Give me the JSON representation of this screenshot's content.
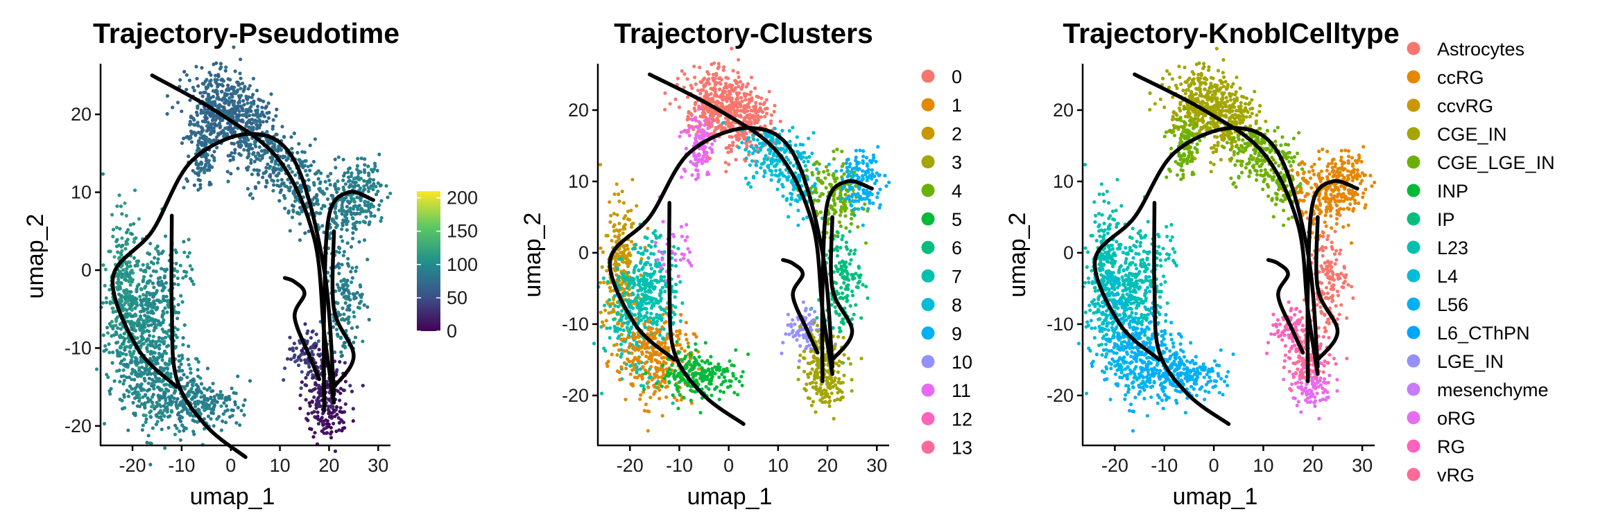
{
  "chart_data": [
    {
      "type": "scatter",
      "title": "Trajectory-Pseudotime",
      "xlabel": "umap_1",
      "ylabel": "umap_2",
      "xticks": [
        "-20",
        "-10",
        "0",
        "10",
        "20",
        "30"
      ],
      "yticks": [
        "-20",
        "-10",
        "0",
        "10",
        "20"
      ],
      "xlim": [
        -26.5,
        32.5
      ],
      "ylim": [
        -22.5,
        26.5
      ],
      "color_by": "pseudotime",
      "colorbar": {
        "ticks": [
          "0",
          "50",
          "100",
          "150",
          "200"
        ],
        "range": [
          0,
          210
        ],
        "colormap": "viridis"
      },
      "trajectory_curves": 4,
      "grid": false
    },
    {
      "type": "scatter",
      "title": "Trajectory-Clusters",
      "xlabel": "umap_1",
      "ylabel": "umap_2",
      "xticks": [
        "-20",
        "-10",
        "0",
        "10",
        "20",
        "30"
      ],
      "yticks": [
        "-20",
        "-10",
        "0",
        "10",
        "20"
      ],
      "xlim": [
        -26.5,
        32.5
      ],
      "ylim": [
        -27.0,
        26.5
      ],
      "color_by": "cluster",
      "legend_position": "right",
      "legend": [
        {
          "label": "0",
          "color": "#F8766D"
        },
        {
          "label": "1",
          "color": "#E58700"
        },
        {
          "label": "2",
          "color": "#C99800"
        },
        {
          "label": "3",
          "color": "#A3A500"
        },
        {
          "label": "4",
          "color": "#6BB100"
        },
        {
          "label": "5",
          "color": "#00BA38"
        },
        {
          "label": "6",
          "color": "#00BF7D"
        },
        {
          "label": "7",
          "color": "#00C0AF"
        },
        {
          "label": "8",
          "color": "#00BCD8"
        },
        {
          "label": "9",
          "color": "#00B0F6"
        },
        {
          "label": "10",
          "color": "#9590FF"
        },
        {
          "label": "11",
          "color": "#E76BF3"
        },
        {
          "label": "12",
          "color": "#FF62BC"
        },
        {
          "label": "13",
          "color": "#FF6A98"
        }
      ],
      "trajectory_curves": 4,
      "grid": false
    },
    {
      "type": "scatter",
      "title": "Trajectory-KnoblCelltype",
      "xlabel": "umap_1",
      "ylabel": "umap_2",
      "xticks": [
        "-20",
        "-10",
        "0",
        "10",
        "20",
        "30"
      ],
      "yticks": [
        "-20",
        "-10",
        "0",
        "10",
        "20"
      ],
      "xlim": [
        -26.5,
        32.5
      ],
      "ylim": [
        -27.0,
        26.5
      ],
      "color_by": "cell type",
      "legend_position": "right",
      "legend": [
        {
          "label": "Astrocytes",
          "color": "#F8766D"
        },
        {
          "label": "ccRG",
          "color": "#E58700"
        },
        {
          "label": "ccvRG",
          "color": "#C99800"
        },
        {
          "label": "CGE_IN",
          "color": "#A3A500"
        },
        {
          "label": "CGE_LGE_IN",
          "color": "#6BB100"
        },
        {
          "label": "INP",
          "color": "#00BA38"
        },
        {
          "label": "IP",
          "color": "#00BF7D"
        },
        {
          "label": "L23",
          "color": "#00C0AF"
        },
        {
          "label": "L4",
          "color": "#00BCD8"
        },
        {
          "label": "L56",
          "color": "#00B0F6"
        },
        {
          "label": "L6_CThPN",
          "color": "#00A5FF"
        },
        {
          "label": "LGE_IN",
          "color": "#9590FF"
        },
        {
          "label": "mesenchyme",
          "color": "#C77CFF"
        },
        {
          "label": "oRG",
          "color": "#E76BF3"
        },
        {
          "label": "RG",
          "color": "#FF62BC"
        },
        {
          "label": "vRG",
          "color": "#FF6A98"
        }
      ],
      "trajectory_curves": 4,
      "grid": false
    }
  ]
}
